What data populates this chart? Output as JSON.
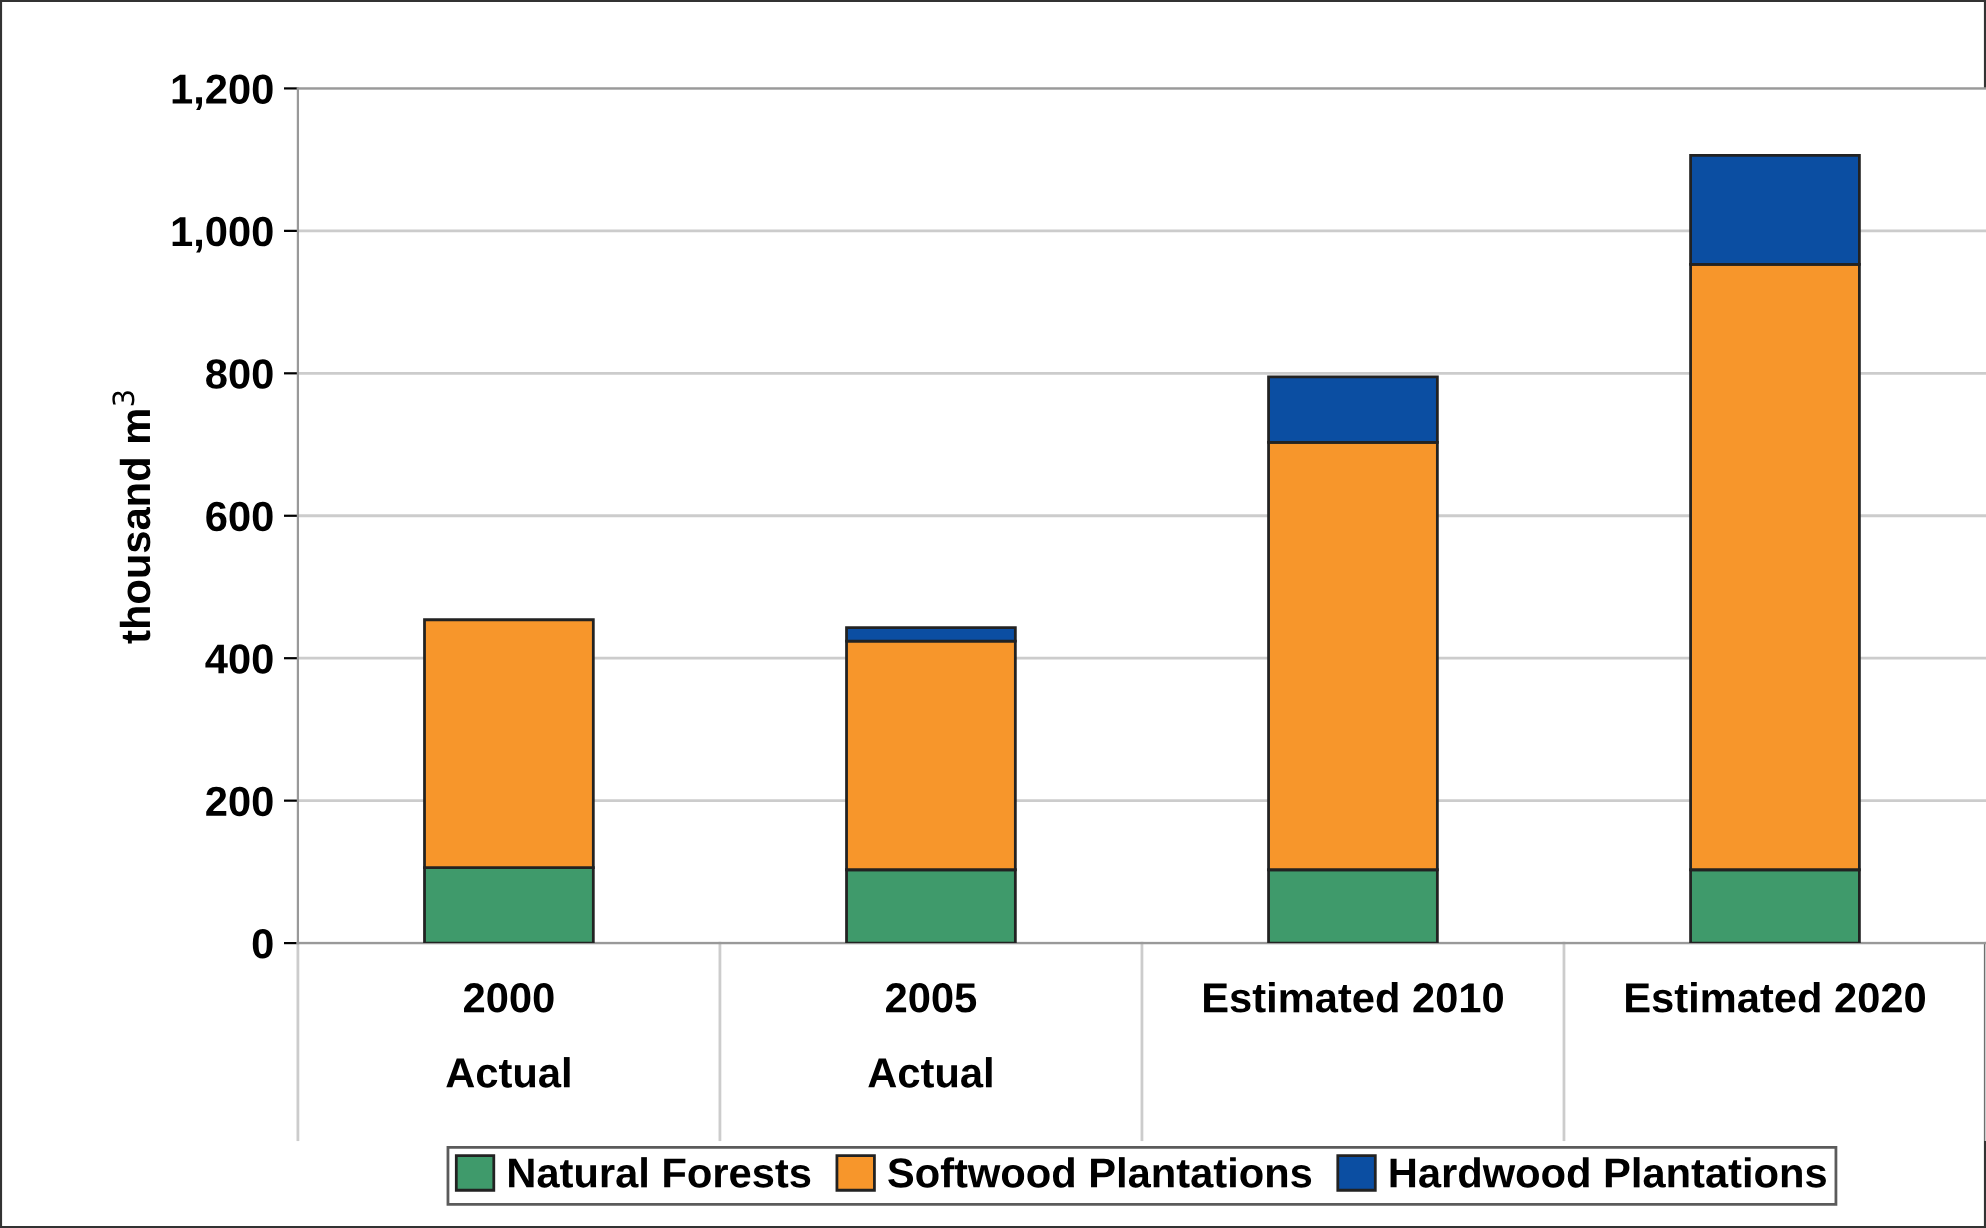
{
  "chart_data": {
    "type": "bar",
    "stacked": true,
    "ylabel": "thousand m$^{3}$",
    "categories": [
      "2000\nActual",
      "2005\nActual",
      "Estimated 2010",
      "Estimated 2020"
    ],
    "series": [
      {
        "name": "Natural Forests",
        "color": "#3f9a6b",
        "values": [
          106,
          103,
          103,
          103
        ]
      },
      {
        "name": "Softwood Plantations",
        "color": "#f7962b",
        "values": [
          348,
          321,
          600,
          850
        ]
      },
      {
        "name": "Hardwood Plantations",
        "color": "#0b4ea2",
        "values": [
          null,
          19,
          92,
          153
        ]
      }
    ],
    "ylim": [
      0,
      1200
    ],
    "yticks": [
      0,
      {
        "value": 200,
        "label": "200"
      },
      {
        "value": 400,
        "label": "400"
      },
      {
        "value": 600,
        "label": "600"
      },
      {
        "value": 800,
        "label": "800"
      },
      {
        "value": 1000,
        "label": "1,000"
      },
      {
        "value": 1200,
        "label": "1,200"
      }
    ],
    "grid": "y",
    "legend": "bottom"
  }
}
